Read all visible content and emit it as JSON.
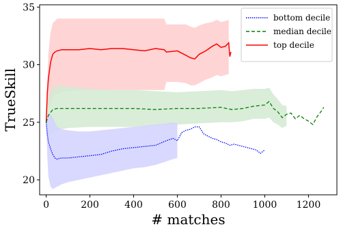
{
  "chart_data": {
    "type": "line",
    "title": "",
    "xlabel": "# matches",
    "ylabel": "TrueSkill",
    "xlim": [
      -30,
      1330
    ],
    "ylim": [
      18.7,
      35.2
    ],
    "xticks": [
      0,
      200,
      400,
      600,
      800,
      1000,
      1200
    ],
    "yticks": [
      20,
      25,
      30,
      35
    ],
    "grid": false,
    "legend": {
      "position": "top-right",
      "entries": [
        "bottom decile",
        "median decile",
        "top decile"
      ]
    },
    "series": [
      {
        "name": "top decile",
        "color": "#ff0000",
        "style": "solid",
        "band_color": "#ffcccc",
        "x": [
          0,
          5,
          10,
          20,
          30,
          40,
          50,
          70,
          100,
          150,
          200,
          250,
          300,
          350,
          400,
          450,
          500,
          540,
          550,
          600,
          640,
          660,
          680,
          700,
          730,
          760,
          780,
          800,
          820,
          835,
          840,
          845
        ],
        "y": [
          25.0,
          27.5,
          28.8,
          30.2,
          30.9,
          31.1,
          31.2,
          31.3,
          31.3,
          31.3,
          31.4,
          31.3,
          31.4,
          31.4,
          31.3,
          31.2,
          31.4,
          31.3,
          31.1,
          31.2,
          30.8,
          30.6,
          30.5,
          30.9,
          31.2,
          31.6,
          31.8,
          31.5,
          31.6,
          31.9,
          30.7,
          31.1
        ],
        "upper": [
          25.5,
          28.5,
          31.0,
          32.8,
          33.6,
          33.8,
          34.0,
          34.0,
          34.0,
          34.0,
          34.0,
          34.0,
          34.0,
          34.0,
          34.0,
          34.0,
          34.0,
          34.0,
          33.5,
          33.5,
          33.5,
          33.3,
          33.2,
          33.4,
          33.6,
          33.7,
          33.9,
          33.7,
          33.8,
          33.9,
          null,
          null
        ],
        "lower": [
          24.5,
          26.0,
          26.2,
          26.7,
          27.2,
          27.4,
          27.5,
          27.6,
          27.7,
          27.8,
          27.8,
          27.8,
          27.8,
          27.8,
          27.8,
          27.8,
          27.8,
          27.8,
          28.5,
          28.5,
          28.4,
          28.2,
          28.2,
          28.4,
          28.7,
          28.9,
          29.1,
          29.0,
          29.1,
          29.2,
          null,
          null
        ]
      },
      {
        "name": "median decile",
        "color": "#008000",
        "style": "dashed",
        "band_color": "#d2ead2",
        "x": [
          0,
          10,
          30,
          50,
          100,
          200,
          300,
          400,
          500,
          600,
          700,
          800,
          850,
          900,
          950,
          1000,
          1020,
          1040,
          1060,
          1080,
          1100,
          1120,
          1140,
          1160,
          1180,
          1200,
          1220,
          1240,
          1260,
          1270
        ],
        "y": [
          25.0,
          25.6,
          26.1,
          26.2,
          26.2,
          26.2,
          26.2,
          26.2,
          26.1,
          26.2,
          26.2,
          26.3,
          26.1,
          26.2,
          26.4,
          26.5,
          26.8,
          26.2,
          25.9,
          25.4,
          25.7,
          25.8,
          25.3,
          25.6,
          25.3,
          25.1,
          24.8,
          25.5,
          26.0,
          26.3
        ],
        "upper": [
          26.0,
          27.2,
          28.0,
          28.2,
          28.1,
          27.9,
          27.8,
          27.8,
          27.7,
          27.6,
          27.7,
          27.8,
          27.7,
          27.8,
          27.9,
          27.9,
          28.0,
          27.4,
          27.0,
          26.5,
          26.4,
          null,
          null,
          null,
          null,
          null,
          null,
          null,
          null,
          null
        ],
        "lower": [
          24.0,
          23.8,
          24.1,
          24.3,
          24.5,
          24.6,
          24.6,
          24.6,
          24.7,
          24.8,
          24.9,
          25.0,
          25.0,
          25.1,
          25.3,
          25.3,
          25.4,
          25.0,
          24.8,
          24.5,
          24.7,
          null,
          null,
          null,
          null,
          null,
          null,
          null,
          null,
          null
        ]
      },
      {
        "name": "bottom decile",
        "color": "#0000ff",
        "style": "dotted",
        "band_color": "#d2d2ff",
        "x": [
          0,
          5,
          10,
          20,
          30,
          40,
          50,
          70,
          100,
          150,
          200,
          250,
          300,
          350,
          400,
          450,
          500,
          550,
          580,
          600,
          620,
          640,
          660,
          680,
          700,
          720,
          740,
          760,
          780,
          800,
          820,
          840,
          860,
          880,
          900,
          920,
          940,
          960,
          980,
          1000
        ],
        "y": [
          25.0,
          24.0,
          23.3,
          22.7,
          22.2,
          21.9,
          21.8,
          21.9,
          21.9,
          22.0,
          22.1,
          22.2,
          22.5,
          22.7,
          22.8,
          22.9,
          23.0,
          23.4,
          23.6,
          23.4,
          24.1,
          24.3,
          24.4,
          24.6,
          24.6,
          24.0,
          23.8,
          23.6,
          23.5,
          23.3,
          23.2,
          23.0,
          23.1,
          23.0,
          22.9,
          22.8,
          22.7,
          22.6,
          22.3,
          22.6
        ],
        "upper": [
          25.0,
          25.5,
          25.8,
          25.7,
          25.4,
          25.0,
          24.6,
          24.4,
          24.3,
          24.2,
          24.2,
          24.3,
          24.4,
          24.5,
          24.6,
          24.7,
          24.8,
          24.9,
          25.0,
          24.9,
          null,
          null,
          null,
          null,
          null,
          null,
          null,
          null,
          null,
          null,
          null,
          null,
          null,
          null,
          null,
          null,
          null,
          null,
          null,
          null
        ],
        "lower": [
          25.0,
          22.0,
          20.3,
          19.4,
          19.2,
          19.3,
          19.4,
          19.6,
          19.8,
          20.0,
          20.2,
          20.4,
          20.6,
          20.8,
          21.0,
          21.1,
          21.3,
          21.6,
          21.8,
          21.9,
          null,
          null,
          null,
          null,
          null,
          null,
          null,
          null,
          null,
          null,
          null,
          null,
          null,
          null,
          null,
          null,
          null,
          null,
          null,
          null
        ]
      }
    ]
  }
}
